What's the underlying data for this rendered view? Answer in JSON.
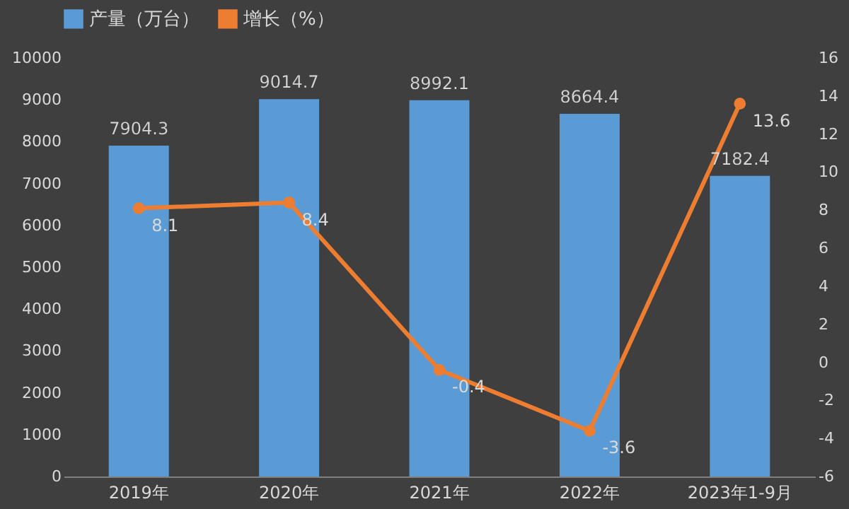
{
  "chart_data": {
    "type": "bar",
    "categories": [
      "2019年",
      "2020年",
      "2021年",
      "2022年",
      "2023年1-9月"
    ],
    "series": [
      {
        "name": "产量（万台）",
        "color": "#5b9bd5",
        "values": [
          7904.3,
          9014.7,
          8992.1,
          8664.4,
          7182.4
        ]
      },
      {
        "name": "增长（%）",
        "type": "line",
        "axis": "y2",
        "color": "#ed7d31",
        "values": [
          8.1,
          8.4,
          -0.4,
          -3.6,
          13.6
        ]
      }
    ],
    "ylim": [
      0,
      10000
    ],
    "yticks": [
      0,
      1000,
      2000,
      3000,
      4000,
      5000,
      6000,
      7000,
      8000,
      9000,
      10000
    ],
    "y2lim": [
      -6,
      16
    ],
    "y2ticks": [
      -6,
      -4,
      -2,
      0,
      2,
      4,
      6,
      8,
      10,
      12,
      14,
      16
    ],
    "data_labels": true,
    "legend": "top",
    "marker": "circle",
    "line_style": "solid",
    "grid": false
  }
}
